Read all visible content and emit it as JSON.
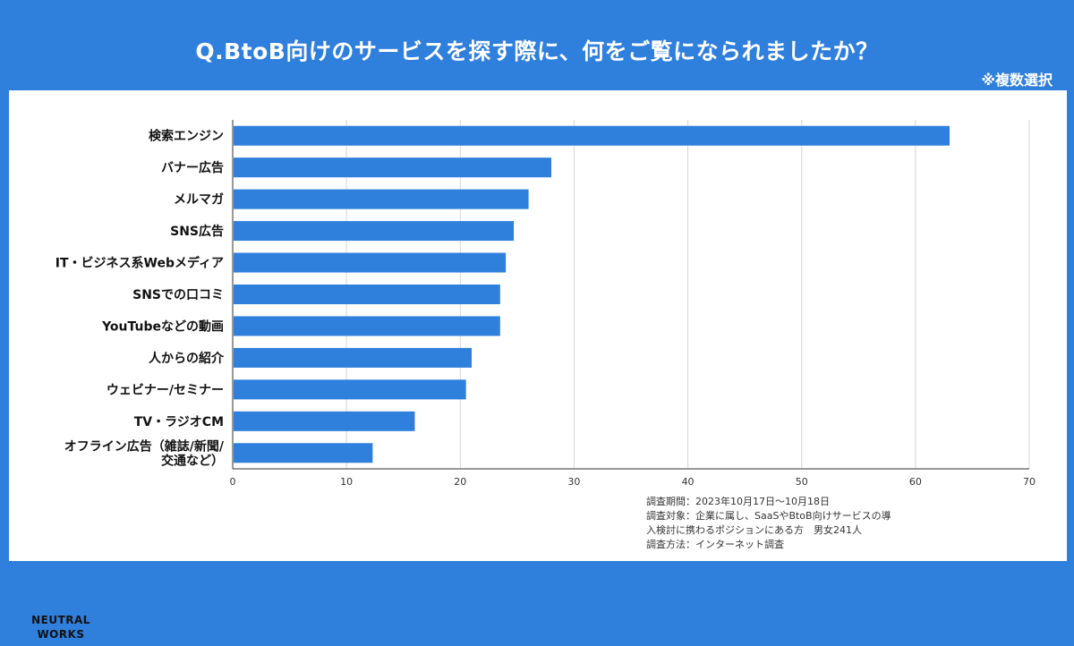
{
  "header": {
    "title": "Q.BtoB向けのサービスを探す際に、何をご覧になられましたか？",
    "note": "※複数選択"
  },
  "colors": {
    "background": "#2f7fdc",
    "bar": "#2f7fdc",
    "card": "#ffffff"
  },
  "chart_data": {
    "type": "bar",
    "orientation": "horizontal",
    "categories": [
      "検索エンジン",
      "バナー広告",
      "メルマガ",
      "SNS広告",
      "IT・ビジネス系Webメディア",
      "SNSでの口コミ",
      "YouTubeなどの動画",
      "人からの紹介",
      "ウェビナー/セミナー",
      "TV・ラジオCM",
      "オフライン広告（雑誌/新聞/交通など）"
    ],
    "category_lines": [
      [
        "検索エンジン"
      ],
      [
        "バナー広告"
      ],
      [
        "メルマガ"
      ],
      [
        "SNS広告"
      ],
      [
        "IT・ビジネス系Webメディア"
      ],
      [
        "SNSでの口コミ"
      ],
      [
        "YouTubeなどの動画"
      ],
      [
        "人からの紹介"
      ],
      [
        "ウェビナー/セミナー"
      ],
      [
        "TV・ラジオCM"
      ],
      [
        "オフライン広告（雑誌/新聞/",
        "交通など）"
      ]
    ],
    "values": [
      63,
      28,
      26,
      24.7,
      24,
      23.5,
      23.5,
      21,
      20.5,
      16,
      12.3
    ],
    "xlim": [
      0,
      70
    ],
    "xticks": [
      0,
      10,
      20,
      30,
      40,
      50,
      60,
      70
    ],
    "grid": true,
    "title": "",
    "xlabel": "",
    "ylabel": ""
  },
  "survey": {
    "period": "調査期間：2023年10月17日～10月18日",
    "target": "調査対象：企業に属し、SaaSやBtoB向けサービスの導入検討に携わるポジションにある方　男女241人",
    "method": "調査方法：インターネット調査"
  },
  "logo": {
    "line1": "NEUTRAL",
    "line2": "WORKS"
  }
}
